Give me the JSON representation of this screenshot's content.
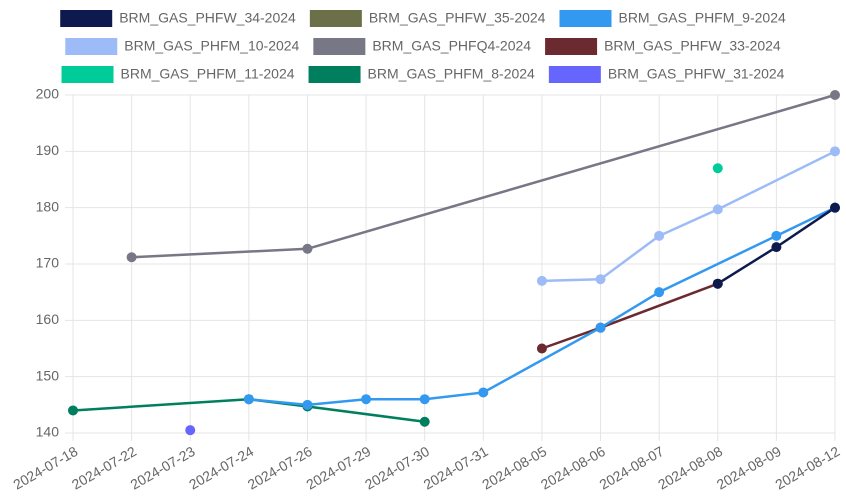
{
  "chart_data": {
    "type": "line",
    "categories": [
      "2024-07-18",
      "2024-07-22",
      "2024-07-23",
      "2024-07-24",
      "2024-07-26",
      "2024-07-29",
      "2024-07-30",
      "2024-07-31",
      "2024-08-05",
      "2024-08-06",
      "2024-08-07",
      "2024-08-08",
      "2024-08-09",
      "2024-08-12"
    ],
    "ylim": [
      140,
      200
    ],
    "yticks": [
      140,
      150,
      160,
      170,
      180,
      190,
      200
    ],
    "grid": true,
    "span_gaps": true,
    "legend": "top",
    "series": [
      {
        "name": "BRM_GAS_PHFW_34-2024",
        "color": "#0e1a4d",
        "values": [
          null,
          null,
          null,
          null,
          null,
          null,
          null,
          null,
          null,
          null,
          null,
          166.5,
          173,
          180
        ]
      },
      {
        "name": "BRM_GAS_PHFW_35-2024",
        "color": "#6b7049",
        "values": [
          null,
          null,
          null,
          null,
          null,
          null,
          null,
          null,
          null,
          null,
          null,
          null,
          null,
          null
        ]
      },
      {
        "name": "BRM_GAS_PHFM_9-2024",
        "color": "#3399f0",
        "values": [
          null,
          null,
          null,
          146,
          145,
          146,
          146,
          147.2,
          null,
          158.7,
          165,
          null,
          175,
          180
        ]
      },
      {
        "name": "BRM_GAS_PHFM_10-2024",
        "color": "#9dbcf7",
        "values": [
          null,
          null,
          null,
          null,
          null,
          null,
          null,
          null,
          167,
          167.3,
          175,
          179.7,
          null,
          190
        ]
      },
      {
        "name": "BRM_GAS_PHFQ4-2024",
        "color": "#777786",
        "values": [
          null,
          171.2,
          null,
          null,
          172.7,
          null,
          null,
          null,
          null,
          null,
          null,
          null,
          null,
          200
        ]
      },
      {
        "name": "BRM_GAS_PHFW_33-2024",
        "color": "#6b2a30",
        "values": [
          null,
          null,
          null,
          null,
          null,
          null,
          null,
          null,
          155,
          158.7,
          null,
          166.5,
          null,
          null
        ]
      },
      {
        "name": "BRM_GAS_PHFM_11-2024",
        "color": "#00cc99",
        "values": [
          null,
          null,
          null,
          null,
          null,
          null,
          null,
          null,
          null,
          null,
          null,
          187,
          null,
          null
        ]
      },
      {
        "name": "BRM_GAS_PHFM_8-2024",
        "color": "#007f5f",
        "values": [
          144,
          null,
          null,
          146,
          144.7,
          null,
          142,
          null,
          null,
          null,
          null,
          null,
          null,
          null
        ]
      },
      {
        "name": "BRM_GAS_PHFW_31-2024",
        "color": "#6666ff",
        "values": [
          null,
          null,
          140.5,
          null,
          null,
          null,
          null,
          null,
          null,
          null,
          null,
          null,
          null,
          null
        ]
      }
    ]
  }
}
